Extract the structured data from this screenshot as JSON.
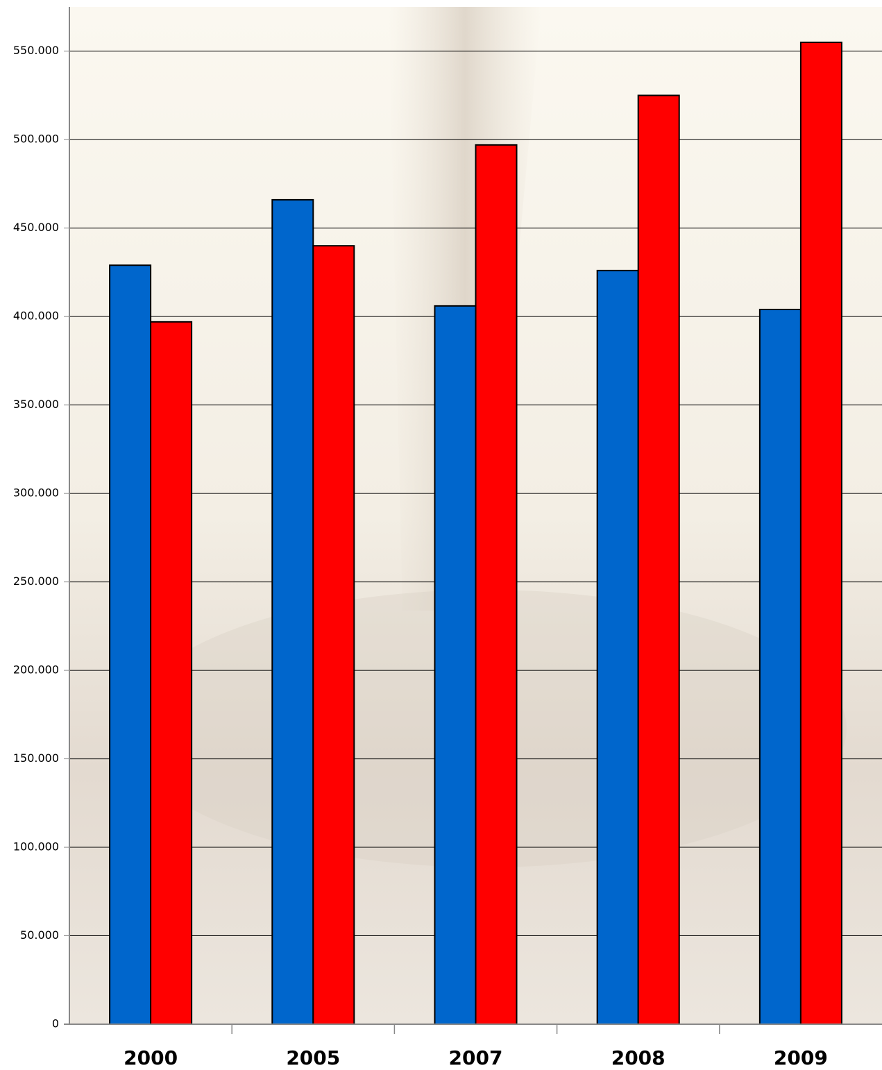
{
  "chart_data": {
    "type": "bar",
    "categories": [
      "2000",
      "2005",
      "2007",
      "2008",
      "2009"
    ],
    "series": [
      {
        "color": "#0066cc",
        "values": [
          429000,
          466000,
          406000,
          426000,
          404000
        ]
      },
      {
        "color": "#ff0000",
        "values": [
          397000,
          440000,
          497000,
          525000,
          555000
        ]
      }
    ],
    "ylim": [
      0,
      575000
    ],
    "yticks": [
      0,
      {
        "value": 50000,
        "label": "50.000"
      },
      {
        "value": 100000,
        "label": "100.000"
      },
      {
        "value": 150000,
        "label": "150.000"
      },
      {
        "value": 200000,
        "label": "200.000"
      },
      {
        "value": 250000,
        "label": "250.000"
      },
      {
        "value": 300000,
        "label": "300.000"
      },
      {
        "value": 350000,
        "label": "350.000"
      },
      {
        "value": 400000,
        "label": "400.000"
      },
      {
        "value": 450000,
        "label": "450.000"
      },
      {
        "value": 500000,
        "label": "500.000"
      },
      {
        "value": 550000,
        "label": "550.000"
      }
    ],
    "grid": true
  }
}
